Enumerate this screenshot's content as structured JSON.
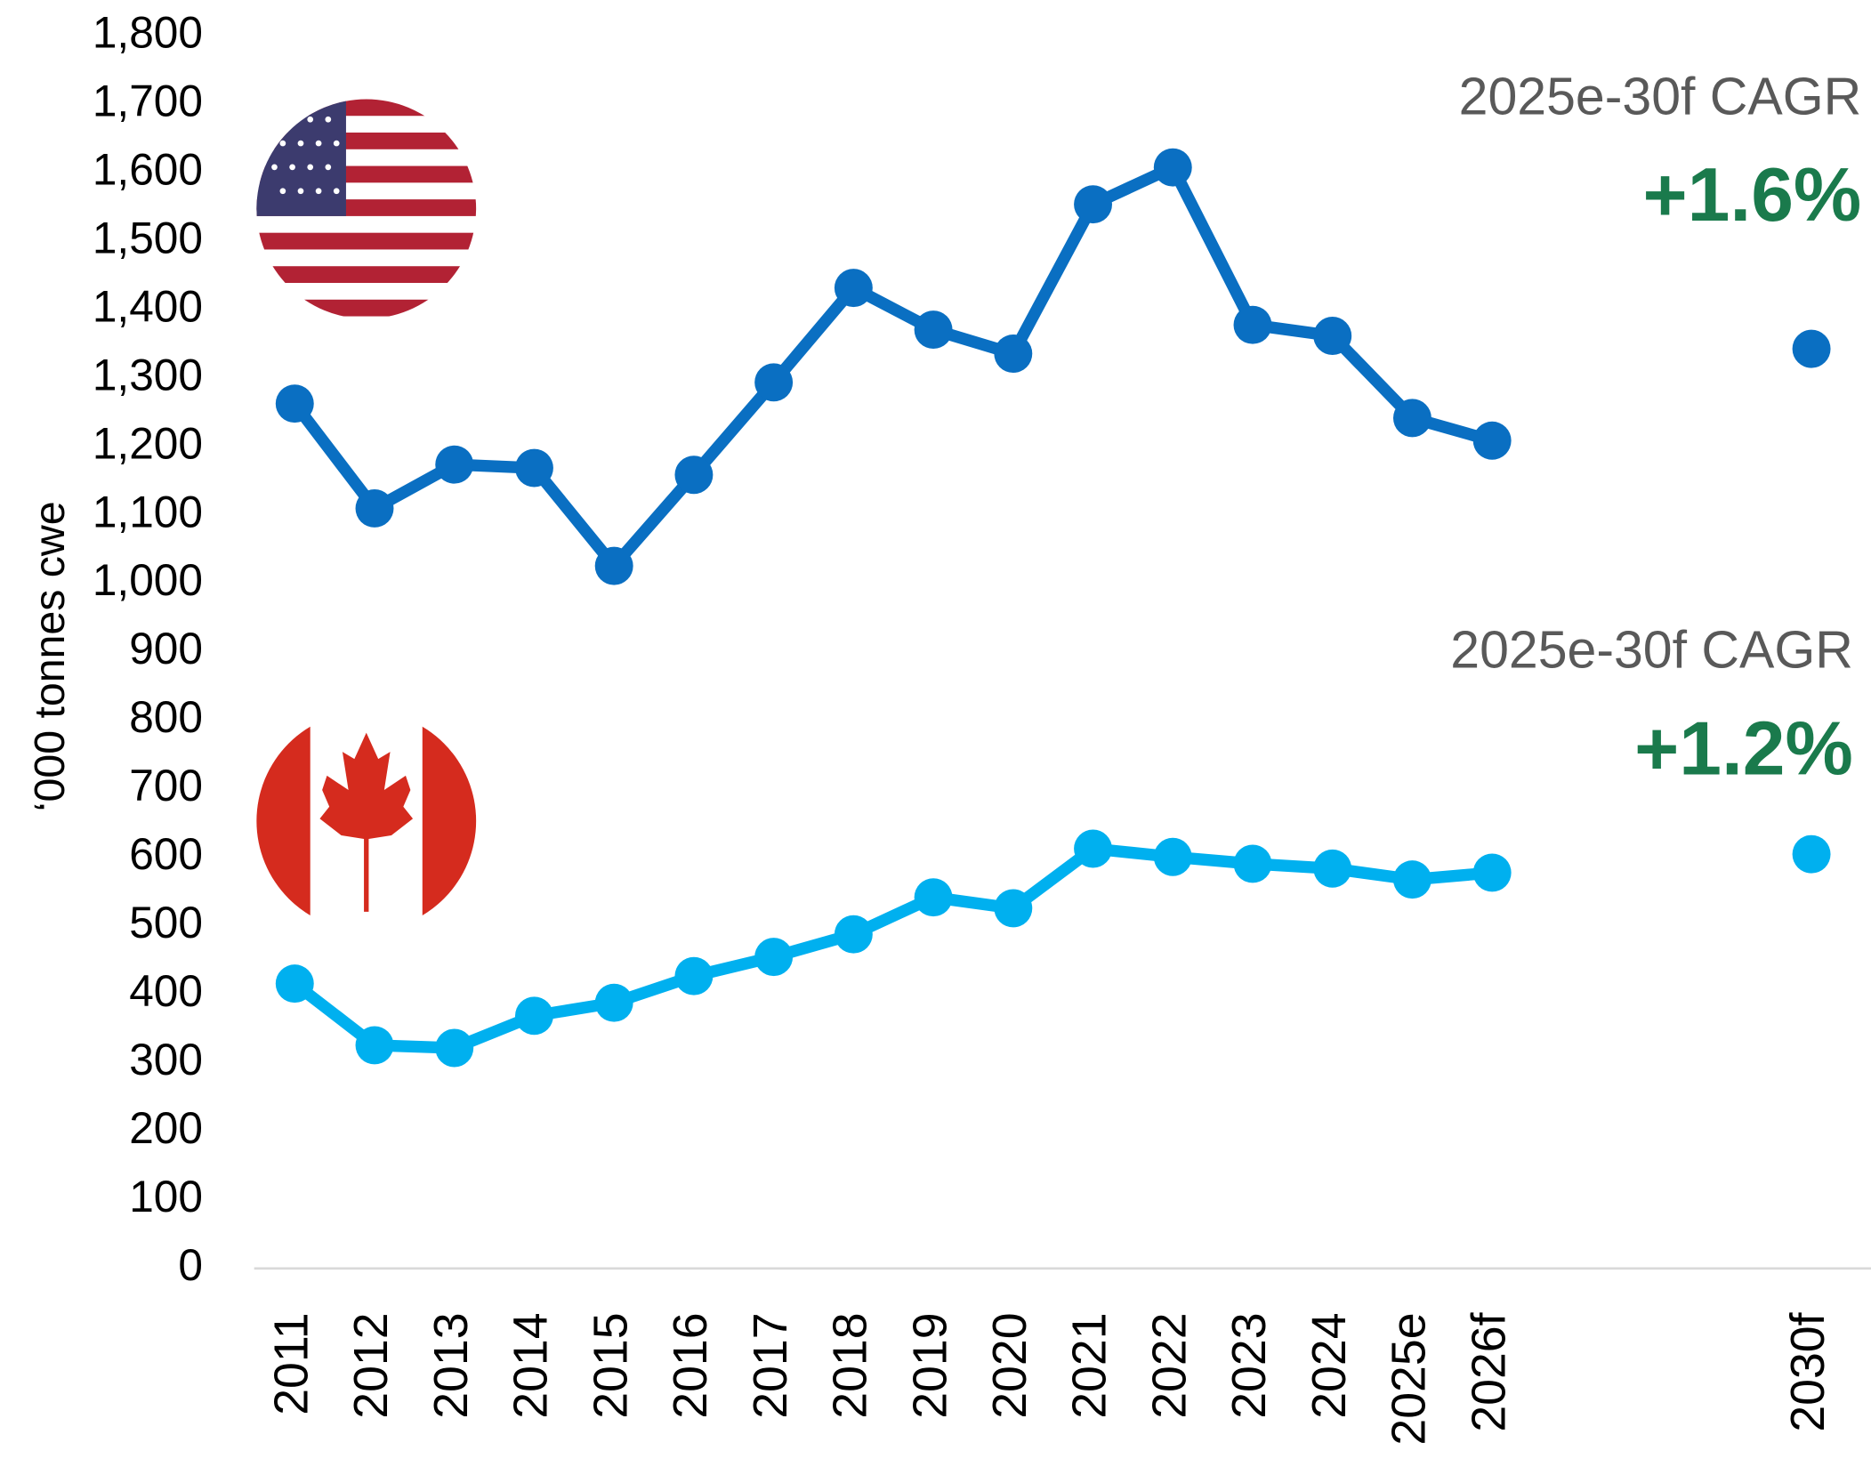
{
  "chart_data": {
    "type": "line",
    "y_label": "‘000 tonnes cwe",
    "categories": [
      "2011",
      "2012",
      "2013",
      "2014",
      "2015",
      "2016",
      "2017",
      "2018",
      "2019",
      "2020",
      "2021",
      "2022",
      "2023",
      "2024",
      "2025e",
      "2026f",
      null,
      null,
      null,
      "2030f"
    ],
    "series": [
      {
        "color": "#0a6fc2",
        "values": [
          1263,
          1110,
          1174,
          1169,
          1026,
          1159,
          1294,
          1432,
          1371,
          1336,
          1554,
          1608,
          1378,
          1362,
          1242,
          1209,
          null,
          null,
          null,
          1343
        ]
      },
      {
        "color": "#00b0ef",
        "values": [
          416,
          326,
          322,
          369,
          388,
          427,
          455,
          488,
          542,
          526,
          613,
          601,
          591,
          584,
          568,
          578,
          null,
          null,
          null,
          605
        ]
      }
    ],
    "ylim": [
      0,
      1800
    ],
    "yticks": [
      0,
      100,
      200,
      300,
      400,
      500,
      600,
      700,
      800,
      900,
      {
        "value": 1000,
        "label": "1,000"
      },
      {
        "value": 1100,
        "label": "1,100"
      },
      {
        "value": 1200,
        "label": "1,200"
      },
      {
        "value": 1300,
        "label": "1,300"
      },
      {
        "value": 1400,
        "label": "1,400"
      },
      {
        "value": 1500,
        "label": "1,500"
      },
      {
        "value": 1600,
        "label": "1,600"
      },
      {
        "value": 1700,
        "label": "1,700"
      },
      {
        "value": 1800,
        "label": "1,800"
      }
    ],
    "grid": false,
    "annotations": [
      {
        "title": "2025e-30f CAGR",
        "value": "+1.6%"
      },
      {
        "title": "2025e-30f CAGR",
        "value": "+1.2%"
      }
    ]
  }
}
